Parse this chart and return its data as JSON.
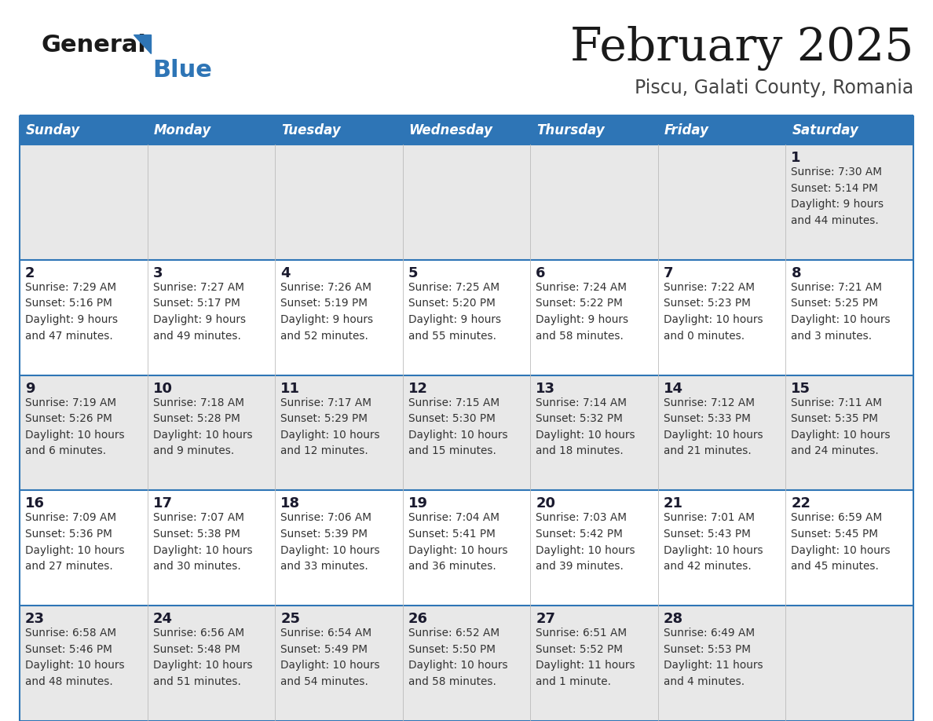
{
  "title": "February 2025",
  "subtitle": "Piscu, Galati County, Romania",
  "days_of_week": [
    "Sunday",
    "Monday",
    "Tuesday",
    "Wednesday",
    "Thursday",
    "Friday",
    "Saturday"
  ],
  "header_bg": "#2e75b6",
  "header_text_color": "#ffffff",
  "cell_bg_light": "#e8e8e8",
  "cell_bg_white": "#ffffff",
  "cell_border_color": "#2e75b6",
  "day_num_color": "#1a1a2e",
  "info_text_color": "#333333",
  "title_color": "#1a1a1a",
  "subtitle_color": "#444444",
  "logo_general_color": "#1a1a1a",
  "logo_blue_color": "#2e75b6",
  "logo_triangle_color": "#2e75b6",
  "weeks": [
    [
      {
        "day": null,
        "info": ""
      },
      {
        "day": null,
        "info": ""
      },
      {
        "day": null,
        "info": ""
      },
      {
        "day": null,
        "info": ""
      },
      {
        "day": null,
        "info": ""
      },
      {
        "day": null,
        "info": ""
      },
      {
        "day": 1,
        "info": "Sunrise: 7:30 AM\nSunset: 5:14 PM\nDaylight: 9 hours\nand 44 minutes."
      }
    ],
    [
      {
        "day": 2,
        "info": "Sunrise: 7:29 AM\nSunset: 5:16 PM\nDaylight: 9 hours\nand 47 minutes."
      },
      {
        "day": 3,
        "info": "Sunrise: 7:27 AM\nSunset: 5:17 PM\nDaylight: 9 hours\nand 49 minutes."
      },
      {
        "day": 4,
        "info": "Sunrise: 7:26 AM\nSunset: 5:19 PM\nDaylight: 9 hours\nand 52 minutes."
      },
      {
        "day": 5,
        "info": "Sunrise: 7:25 AM\nSunset: 5:20 PM\nDaylight: 9 hours\nand 55 minutes."
      },
      {
        "day": 6,
        "info": "Sunrise: 7:24 AM\nSunset: 5:22 PM\nDaylight: 9 hours\nand 58 minutes."
      },
      {
        "day": 7,
        "info": "Sunrise: 7:22 AM\nSunset: 5:23 PM\nDaylight: 10 hours\nand 0 minutes."
      },
      {
        "day": 8,
        "info": "Sunrise: 7:21 AM\nSunset: 5:25 PM\nDaylight: 10 hours\nand 3 minutes."
      }
    ],
    [
      {
        "day": 9,
        "info": "Sunrise: 7:19 AM\nSunset: 5:26 PM\nDaylight: 10 hours\nand 6 minutes."
      },
      {
        "day": 10,
        "info": "Sunrise: 7:18 AM\nSunset: 5:28 PM\nDaylight: 10 hours\nand 9 minutes."
      },
      {
        "day": 11,
        "info": "Sunrise: 7:17 AM\nSunset: 5:29 PM\nDaylight: 10 hours\nand 12 minutes."
      },
      {
        "day": 12,
        "info": "Sunrise: 7:15 AM\nSunset: 5:30 PM\nDaylight: 10 hours\nand 15 minutes."
      },
      {
        "day": 13,
        "info": "Sunrise: 7:14 AM\nSunset: 5:32 PM\nDaylight: 10 hours\nand 18 minutes."
      },
      {
        "day": 14,
        "info": "Sunrise: 7:12 AM\nSunset: 5:33 PM\nDaylight: 10 hours\nand 21 minutes."
      },
      {
        "day": 15,
        "info": "Sunrise: 7:11 AM\nSunset: 5:35 PM\nDaylight: 10 hours\nand 24 minutes."
      }
    ],
    [
      {
        "day": 16,
        "info": "Sunrise: 7:09 AM\nSunset: 5:36 PM\nDaylight: 10 hours\nand 27 minutes."
      },
      {
        "day": 17,
        "info": "Sunrise: 7:07 AM\nSunset: 5:38 PM\nDaylight: 10 hours\nand 30 minutes."
      },
      {
        "day": 18,
        "info": "Sunrise: 7:06 AM\nSunset: 5:39 PM\nDaylight: 10 hours\nand 33 minutes."
      },
      {
        "day": 19,
        "info": "Sunrise: 7:04 AM\nSunset: 5:41 PM\nDaylight: 10 hours\nand 36 minutes."
      },
      {
        "day": 20,
        "info": "Sunrise: 7:03 AM\nSunset: 5:42 PM\nDaylight: 10 hours\nand 39 minutes."
      },
      {
        "day": 21,
        "info": "Sunrise: 7:01 AM\nSunset: 5:43 PM\nDaylight: 10 hours\nand 42 minutes."
      },
      {
        "day": 22,
        "info": "Sunrise: 6:59 AM\nSunset: 5:45 PM\nDaylight: 10 hours\nand 45 minutes."
      }
    ],
    [
      {
        "day": 23,
        "info": "Sunrise: 6:58 AM\nSunset: 5:46 PM\nDaylight: 10 hours\nand 48 minutes."
      },
      {
        "day": 24,
        "info": "Sunrise: 6:56 AM\nSunset: 5:48 PM\nDaylight: 10 hours\nand 51 minutes."
      },
      {
        "day": 25,
        "info": "Sunrise: 6:54 AM\nSunset: 5:49 PM\nDaylight: 10 hours\nand 54 minutes."
      },
      {
        "day": 26,
        "info": "Sunrise: 6:52 AM\nSunset: 5:50 PM\nDaylight: 10 hours\nand 58 minutes."
      },
      {
        "day": 27,
        "info": "Sunrise: 6:51 AM\nSunset: 5:52 PM\nDaylight: 11 hours\nand 1 minute."
      },
      {
        "day": 28,
        "info": "Sunrise: 6:49 AM\nSunset: 5:53 PM\nDaylight: 11 hours\nand 4 minutes."
      },
      {
        "day": null,
        "info": ""
      }
    ]
  ]
}
